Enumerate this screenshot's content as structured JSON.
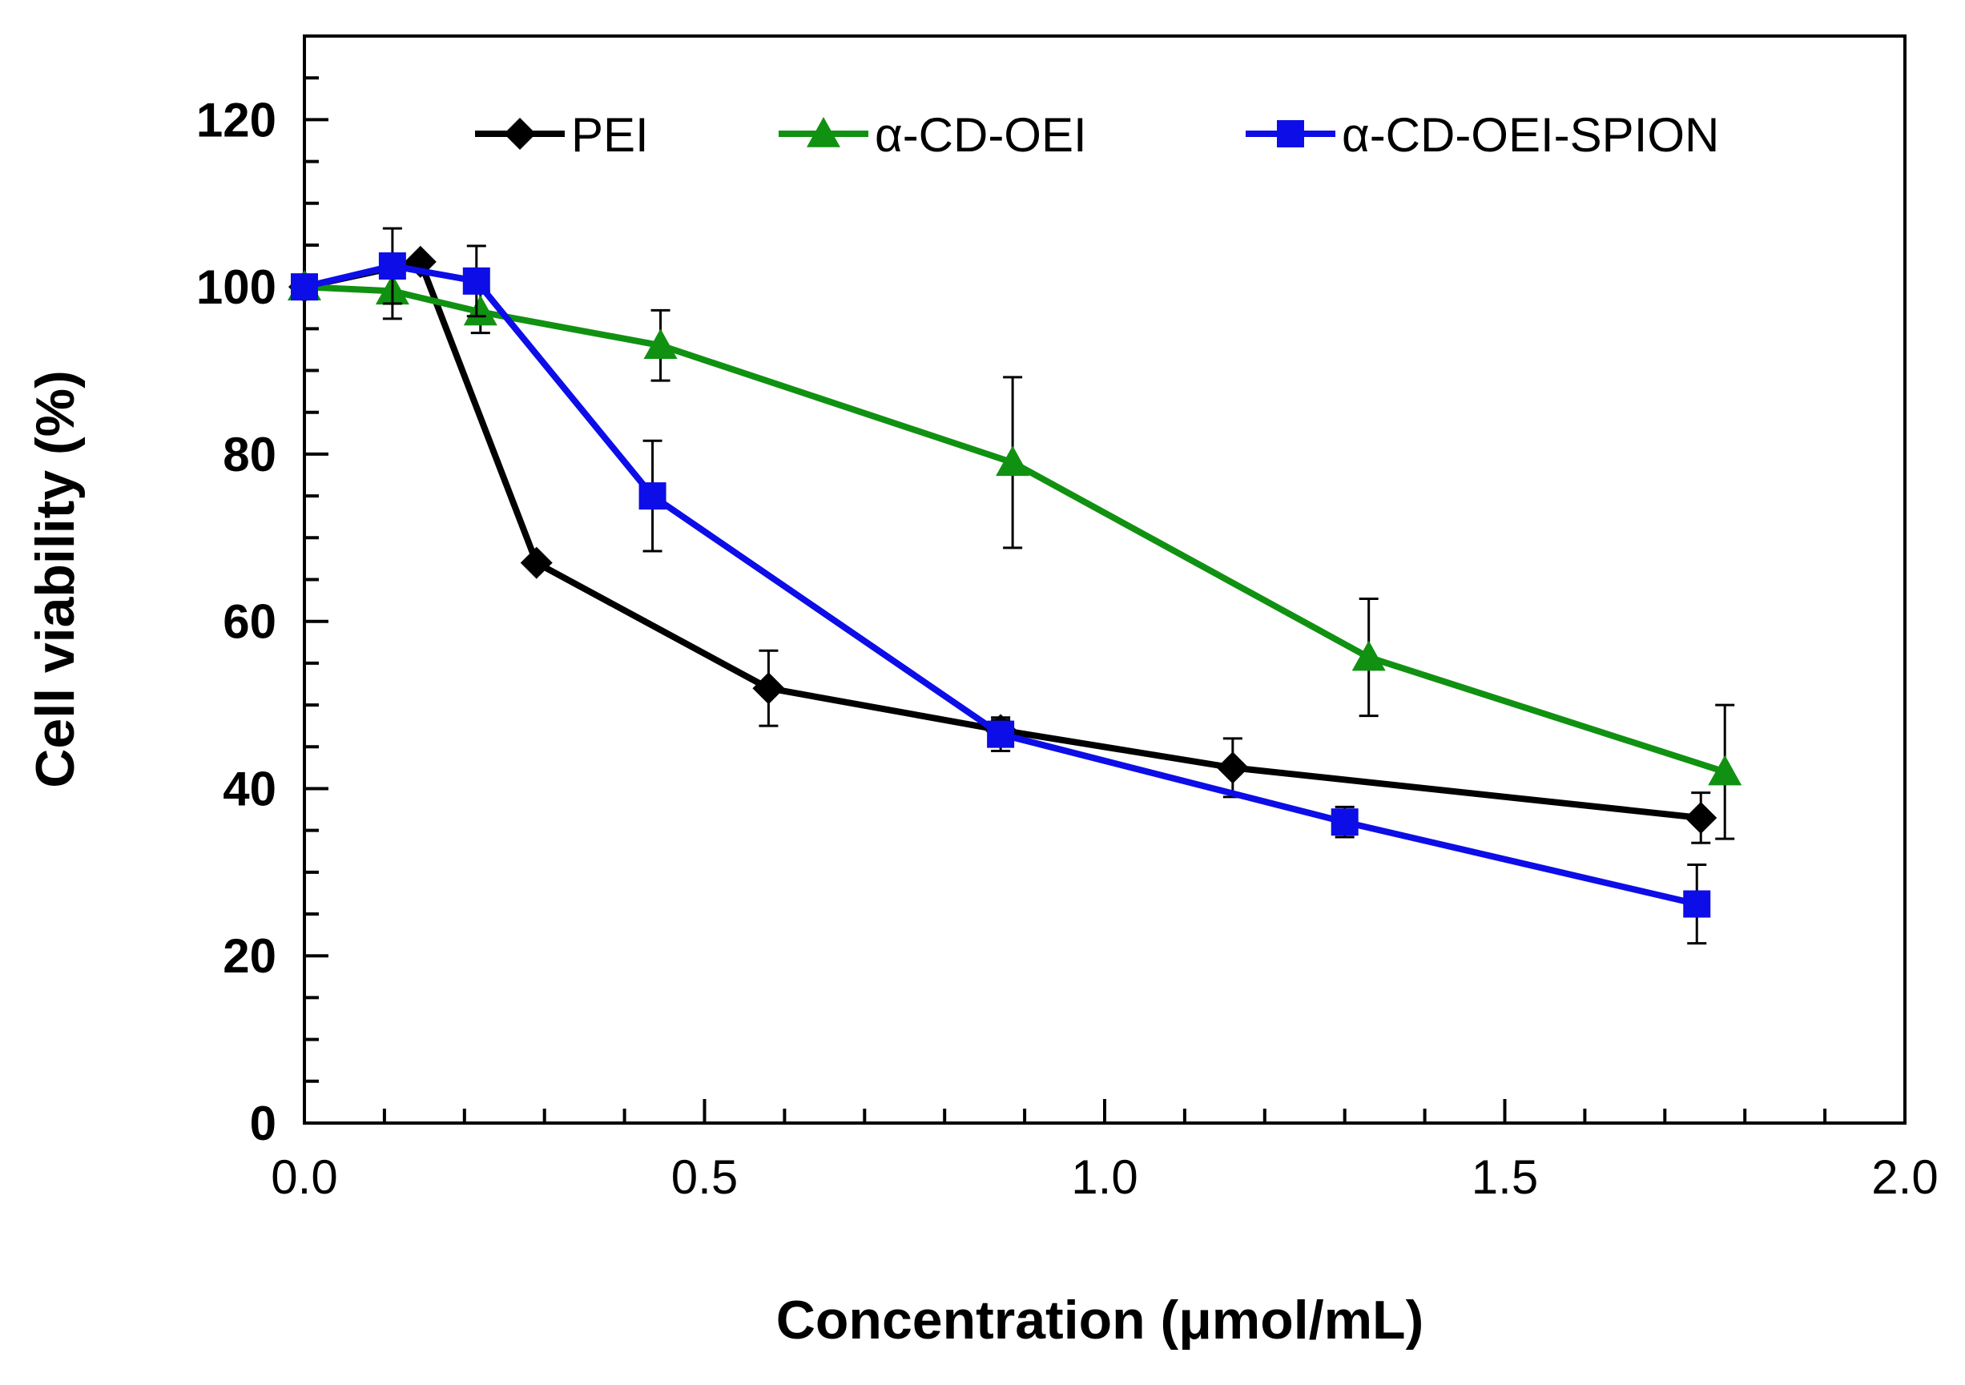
{
  "chart_data": {
    "type": "line",
    "title": "",
    "xlabel": "Concentration (μmol/mL)",
    "ylabel": "Cell viability (%)",
    "xlim": [
      0,
      2.0
    ],
    "ylim": [
      0,
      130
    ],
    "x_major_ticks": [
      0,
      0.5,
      1.0,
      1.5,
      2.0
    ],
    "x_tick_labels": [
      "0.0",
      "0.5",
      "1.0",
      "1.5",
      "2.0"
    ],
    "x_minor_step": 0.1,
    "y_major_ticks": [
      0,
      20,
      40,
      60,
      80,
      100,
      120
    ],
    "y_tick_labels": [
      "0",
      "20",
      "40",
      "60",
      "80",
      "100",
      "120"
    ],
    "y_minor_step": 5,
    "grid": false,
    "legend_position": "top",
    "series": [
      {
        "name": "PEI",
        "color": "#000000",
        "marker": "diamond",
        "x": [
          0,
          0.145,
          0.29,
          0.58,
          0.87,
          1.16,
          1.745
        ],
        "y": [
          100,
          103,
          67,
          52,
          47,
          42.5,
          36.5
        ],
        "error": [
          0,
          0,
          0,
          4.5,
          1.2,
          3.5,
          3
        ]
      },
      {
        "name": "α-CD-OEI",
        "color": "#119111",
        "marker": "triangle",
        "x": [
          0,
          0.11,
          0.22,
          0.445,
          0.885,
          1.33,
          1.775
        ],
        "y": [
          100,
          99.5,
          97,
          93,
          79,
          55.7,
          42
        ],
        "error": [
          0,
          3.3,
          2.5,
          4.2,
          10.2,
          7,
          8
        ]
      },
      {
        "name": "α-CD-OEI-SPION",
        "color": "#0d0de8",
        "marker": "square",
        "x": [
          0,
          0.11,
          0.215,
          0.435,
          0.87,
          1.3,
          1.74
        ],
        "y": [
          100,
          102.5,
          100.7,
          75,
          46.5,
          36,
          26.2
        ],
        "error": [
          0,
          4.5,
          4.2,
          6.6,
          2,
          1.8,
          4.7
        ]
      }
    ]
  }
}
